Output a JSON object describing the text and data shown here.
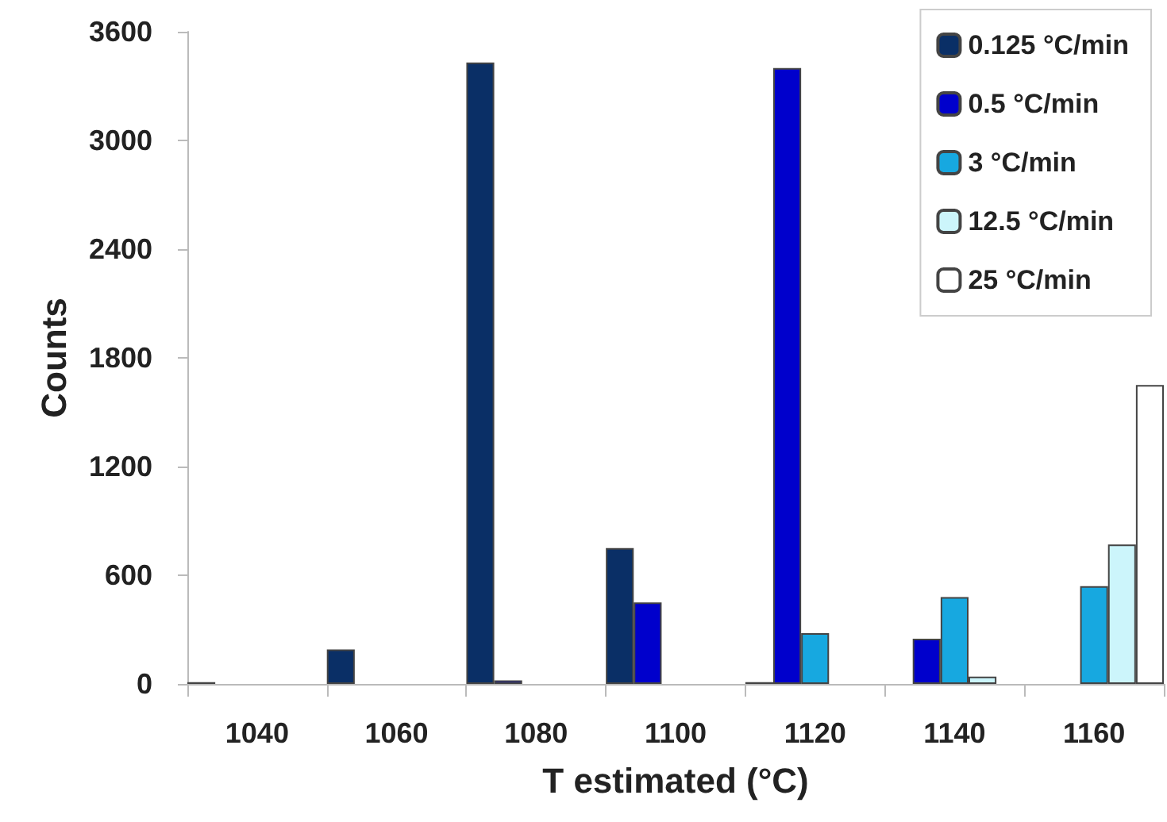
{
  "chart_data": {
    "type": "bar",
    "xlabel": "T estimated (°C)",
    "ylabel": "Counts",
    "categories": [
      "1040",
      "1060",
      "1080",
      "1100",
      "1120",
      "1140",
      "1160"
    ],
    "series": [
      {
        "name": "0.125 °C/min",
        "color": "#0a2f66",
        "values": [
          10,
          190,
          3430,
          750,
          10,
          null,
          null
        ]
      },
      {
        "name": "0.5 °C/min",
        "color": "#0000cc",
        "values": [
          null,
          null,
          20,
          450,
          3400,
          250,
          null
        ]
      },
      {
        "name": "3 °C/min",
        "color": "#17a8e0",
        "values": [
          null,
          null,
          null,
          null,
          280,
          480,
          540
        ]
      },
      {
        "name": "12.5 °C/min",
        "color": "#ccf5fb",
        "values": [
          null,
          null,
          null,
          null,
          null,
          40,
          770
        ]
      },
      {
        "name": "25 °C/min",
        "color": "#ffffff",
        "values": [
          null,
          null,
          null,
          null,
          null,
          null,
          1650
        ]
      }
    ],
    "ylim": [
      0,
      3600
    ],
    "yticks": [
      0,
      600,
      1200,
      1800,
      2400,
      3000,
      3600
    ],
    "grid": false,
    "legend": "top right"
  }
}
